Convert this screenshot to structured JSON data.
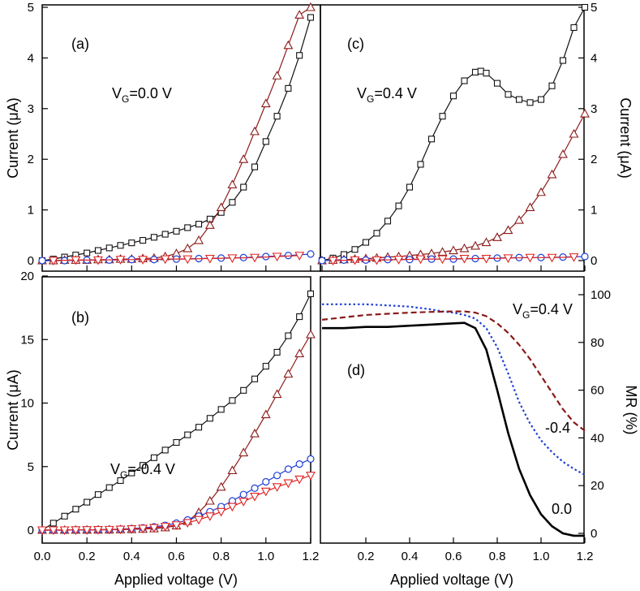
{
  "figure": {
    "x_axis_title": "Applied voltage (V)",
    "current_axis_title": "Current (μA)",
    "mr_axis_title": "MR (%)"
  },
  "chart_data": [
    {
      "panel": "a",
      "type": "line",
      "label": "(a)",
      "annotation": {
        "main": "V",
        "sub": "G",
        "rest": "=0.0 V"
      },
      "ylabel": "Current (μA)",
      "xlim": [
        0,
        1.2
      ],
      "ylim": [
        0,
        5
      ],
      "yticks": [
        0,
        1,
        2,
        3,
        4,
        5
      ],
      "series": [
        {
          "marker": "square",
          "color": "#111111",
          "x": [
            0.0,
            0.05,
            0.1,
            0.15,
            0.2,
            0.25,
            0.3,
            0.35,
            0.4,
            0.45,
            0.5,
            0.55,
            0.6,
            0.65,
            0.7,
            0.75,
            0.8,
            0.85,
            0.9,
            0.95,
            1.0,
            1.05,
            1.1,
            1.15,
            1.2
          ],
          "y": [
            0.0,
            0.03,
            0.07,
            0.11,
            0.15,
            0.2,
            0.25,
            0.3,
            0.35,
            0.4,
            0.46,
            0.52,
            0.58,
            0.65,
            0.72,
            0.82,
            0.95,
            1.15,
            1.45,
            1.85,
            2.35,
            2.85,
            3.4,
            4.05,
            4.8
          ]
        },
        {
          "marker": "triangle-up",
          "color": "#8b1a1a",
          "x": [
            0.0,
            0.05,
            0.1,
            0.15,
            0.2,
            0.25,
            0.3,
            0.35,
            0.4,
            0.45,
            0.5,
            0.55,
            0.6,
            0.65,
            0.7,
            0.75,
            0.8,
            0.85,
            0.9,
            0.95,
            1.0,
            1.05,
            1.1,
            1.15,
            1.2
          ],
          "y": [
            0.0,
            0.0,
            0.01,
            0.01,
            0.01,
            0.02,
            0.02,
            0.03,
            0.03,
            0.04,
            0.05,
            0.08,
            0.14,
            0.24,
            0.4,
            0.7,
            1.05,
            1.5,
            2.0,
            2.55,
            3.1,
            3.65,
            4.25,
            4.85,
            5.0
          ]
        },
        {
          "marker": "circle",
          "color": "#1f3fd6",
          "x": [
            0.0,
            0.1,
            0.2,
            0.3,
            0.4,
            0.5,
            0.6,
            0.7,
            0.8,
            0.9,
            1.0,
            1.1,
            1.2
          ],
          "y": [
            0.0,
            0.0,
            0.01,
            0.01,
            0.02,
            0.02,
            0.03,
            0.04,
            0.05,
            0.06,
            0.08,
            0.1,
            0.13
          ]
        },
        {
          "marker": "triangle-down",
          "color": "#e02020",
          "x": [
            0.05,
            0.15,
            0.25,
            0.35,
            0.45,
            0.55,
            0.65,
            0.75,
            0.85,
            0.95,
            1.05,
            1.15
          ],
          "y": [
            0.0,
            0.01,
            0.01,
            0.02,
            0.02,
            0.03,
            0.03,
            0.04,
            0.05,
            0.06,
            0.08,
            0.1
          ]
        }
      ]
    },
    {
      "panel": "c",
      "type": "line",
      "label": "(c)",
      "annotation": {
        "main": "V",
        "sub": "G",
        "rest": "=0.4 V"
      },
      "ylabel": "Current (μA)",
      "xlim": [
        0,
        1.2
      ],
      "ylim": [
        0,
        5
      ],
      "yticks": [
        0,
        1,
        2,
        3,
        4,
        5
      ],
      "series": [
        {
          "marker": "square",
          "color": "#111111",
          "x": [
            0.0,
            0.05,
            0.1,
            0.15,
            0.2,
            0.25,
            0.3,
            0.35,
            0.4,
            0.45,
            0.5,
            0.55,
            0.6,
            0.65,
            0.7,
            0.725,
            0.75,
            0.8,
            0.85,
            0.9,
            0.95,
            1.0,
            1.05,
            1.1,
            1.15,
            1.2
          ],
          "y": [
            0.0,
            0.05,
            0.12,
            0.22,
            0.36,
            0.54,
            0.78,
            1.08,
            1.45,
            1.9,
            2.4,
            2.85,
            3.25,
            3.55,
            3.72,
            3.74,
            3.7,
            3.5,
            3.28,
            3.18,
            3.12,
            3.18,
            3.45,
            3.95,
            4.6,
            5.0
          ]
        },
        {
          "marker": "triangle-up",
          "color": "#8b1a1a",
          "x": [
            0.0,
            0.05,
            0.1,
            0.15,
            0.2,
            0.25,
            0.3,
            0.35,
            0.4,
            0.45,
            0.5,
            0.55,
            0.6,
            0.65,
            0.7,
            0.75,
            0.8,
            0.85,
            0.9,
            0.95,
            1.0,
            1.05,
            1.1,
            1.15,
            1.2
          ],
          "y": [
            0.0,
            0.01,
            0.02,
            0.03,
            0.04,
            0.05,
            0.07,
            0.08,
            0.1,
            0.12,
            0.14,
            0.17,
            0.2,
            0.24,
            0.29,
            0.36,
            0.46,
            0.6,
            0.8,
            1.05,
            1.35,
            1.7,
            2.1,
            2.5,
            2.9
          ]
        },
        {
          "marker": "circle",
          "color": "#1f3fd6",
          "x": [
            0.0,
            0.1,
            0.2,
            0.3,
            0.4,
            0.5,
            0.6,
            0.7,
            0.8,
            0.9,
            1.0,
            1.1,
            1.2
          ],
          "y": [
            0.0,
            0.01,
            0.01,
            0.02,
            0.02,
            0.03,
            0.03,
            0.04,
            0.05,
            0.06,
            0.06,
            0.07,
            0.08
          ]
        },
        {
          "marker": "triangle-down",
          "color": "#e02020",
          "x": [
            0.05,
            0.15,
            0.25,
            0.35,
            0.45,
            0.55,
            0.65,
            0.75,
            0.85,
            0.95,
            1.05,
            1.15
          ],
          "y": [
            0.0,
            0.01,
            0.01,
            0.02,
            0.03,
            0.03,
            0.04,
            0.04,
            0.05,
            0.06,
            0.06,
            0.07
          ]
        }
      ]
    },
    {
      "panel": "b",
      "type": "line",
      "label": "(b)",
      "annotation": {
        "main": "V",
        "sub": "G",
        "rest": "=-0.4 V"
      },
      "ylabel": "Current (μA)",
      "xlabel": "Applied voltage (V)",
      "xlim": [
        0,
        1.2
      ],
      "ylim": [
        -1,
        20
      ],
      "yticks": [
        0,
        5,
        10,
        15,
        20
      ],
      "xticks": [
        0.0,
        0.2,
        0.4,
        0.6,
        0.8,
        1.0,
        1.2
      ],
      "xtick_labels": [
        "0.0",
        "0.2",
        "0.4",
        "0.6",
        "0.8",
        "1.0",
        "1.2"
      ],
      "series": [
        {
          "marker": "square",
          "color": "#111111",
          "x": [
            0.0,
            0.05,
            0.1,
            0.15,
            0.2,
            0.25,
            0.3,
            0.35,
            0.4,
            0.45,
            0.5,
            0.55,
            0.6,
            0.65,
            0.7,
            0.75,
            0.8,
            0.85,
            0.9,
            0.95,
            1.0,
            1.05,
            1.1,
            1.15,
            1.2
          ],
          "y": [
            0.0,
            0.55,
            1.1,
            1.65,
            2.2,
            2.8,
            3.35,
            3.9,
            4.5,
            5.1,
            5.7,
            6.3,
            6.9,
            7.5,
            8.1,
            8.8,
            9.5,
            10.2,
            11.0,
            11.9,
            12.9,
            14.0,
            15.3,
            16.8,
            18.6
          ]
        },
        {
          "marker": "triangle-up",
          "color": "#8b1a1a",
          "x": [
            0.0,
            0.05,
            0.1,
            0.15,
            0.2,
            0.25,
            0.3,
            0.35,
            0.4,
            0.45,
            0.5,
            0.55,
            0.6,
            0.65,
            0.7,
            0.75,
            0.8,
            0.85,
            0.9,
            0.95,
            1.0,
            1.05,
            1.1,
            1.15,
            1.2
          ],
          "y": [
            0.0,
            0.0,
            0.0,
            0.01,
            0.01,
            0.02,
            0.03,
            0.04,
            0.06,
            0.08,
            0.12,
            0.2,
            0.35,
            0.7,
            1.4,
            2.3,
            3.4,
            4.7,
            6.1,
            7.6,
            9.1,
            10.7,
            12.3,
            13.9,
            15.4
          ]
        },
        {
          "marker": "circle",
          "color": "#1f3fd6",
          "x": [
            0.0,
            0.05,
            0.1,
            0.15,
            0.2,
            0.25,
            0.3,
            0.35,
            0.4,
            0.45,
            0.5,
            0.55,
            0.6,
            0.65,
            0.7,
            0.75,
            0.8,
            0.85,
            0.9,
            0.95,
            1.0,
            1.05,
            1.1,
            1.15,
            1.2
          ],
          "y": [
            0.0,
            0.0,
            0.0,
            0.01,
            0.02,
            0.03,
            0.05,
            0.08,
            0.12,
            0.18,
            0.26,
            0.38,
            0.55,
            0.8,
            1.1,
            1.45,
            1.85,
            2.3,
            2.8,
            3.3,
            3.8,
            4.3,
            4.8,
            5.2,
            5.6
          ]
        },
        {
          "marker": "triangle-down",
          "color": "#e02020",
          "x": [
            0.0,
            0.05,
            0.1,
            0.15,
            0.2,
            0.25,
            0.3,
            0.35,
            0.4,
            0.45,
            0.5,
            0.55,
            0.6,
            0.65,
            0.7,
            0.75,
            0.8,
            0.85,
            0.9,
            0.95,
            1.0,
            1.05,
            1.1,
            1.15,
            1.2
          ],
          "y": [
            0.0,
            0.0,
            0.0,
            0.01,
            0.02,
            0.03,
            0.04,
            0.06,
            0.09,
            0.13,
            0.19,
            0.28,
            0.4,
            0.58,
            0.82,
            1.1,
            1.45,
            1.85,
            2.25,
            2.65,
            3.05,
            3.4,
            3.7,
            4.0,
            4.3
          ]
        }
      ]
    },
    {
      "panel": "d",
      "type": "line",
      "label": "(d)",
      "ylabel": "MR (%)",
      "xlabel": "Applied voltage (V)",
      "xlim": [
        0,
        1.2
      ],
      "ylim": [
        -3,
        100
      ],
      "yticks": [
        0,
        20,
        40,
        60,
        80,
        100
      ],
      "xticks": [
        0.2,
        0.4,
        0.6,
        0.8,
        1.0,
        1.2
      ],
      "xtick_labels": [
        "0.2",
        "0.4",
        "0.6",
        "0.8",
        "1.0",
        "1.2"
      ],
      "annotations": [
        {
          "text_main": "V",
          "text_sub": "G",
          "text_rest": "=0.4 V"
        },
        {
          "text": "-0.4"
        },
        {
          "text": "0.0"
        }
      ],
      "series": [
        {
          "style": "solid",
          "color": "#000000",
          "stroke": 2.6,
          "x": [
            0.0,
            0.1,
            0.2,
            0.3,
            0.4,
            0.5,
            0.6,
            0.65,
            0.7,
            0.75,
            0.8,
            0.85,
            0.9,
            0.95,
            1.0,
            1.05,
            1.1,
            1.15,
            1.2
          ],
          "y": [
            86.0,
            86.0,
            86.5,
            86.5,
            87.0,
            87.5,
            88.0,
            88.2,
            86.0,
            77.0,
            60.0,
            42.0,
            27.0,
            16.0,
            8.0,
            3.0,
            0.0,
            -1.0,
            -1.0
          ]
        },
        {
          "style": "dotted",
          "color": "#1f3fd6",
          "stroke": 2.2,
          "x": [
            0.0,
            0.1,
            0.2,
            0.3,
            0.4,
            0.5,
            0.55,
            0.6,
            0.65,
            0.7,
            0.75,
            0.8,
            0.85,
            0.9,
            0.95,
            1.0,
            1.05,
            1.1,
            1.15,
            1.2
          ],
          "y": [
            96.0,
            96.0,
            96.0,
            95.5,
            95.0,
            93.8,
            93.0,
            92.5,
            91.5,
            90.0,
            86.0,
            78.0,
            67.0,
            55.0,
            46.0,
            39.0,
            34.0,
            30.0,
            27.0,
            24.5
          ]
        },
        {
          "style": "dashed",
          "color": "#8b1a1a",
          "stroke": 2.2,
          "x": [
            0.0,
            0.1,
            0.2,
            0.3,
            0.4,
            0.5,
            0.6,
            0.65,
            0.7,
            0.75,
            0.8,
            0.85,
            0.9,
            0.95,
            1.0,
            1.05,
            1.1,
            1.15,
            1.2
          ],
          "y": [
            89.5,
            90.5,
            91.5,
            92.0,
            92.5,
            92.8,
            93.0,
            93.0,
            92.5,
            91.0,
            88.0,
            84.0,
            79.0,
            73.0,
            66.0,
            59.0,
            52.0,
            46.5,
            43.0
          ]
        }
      ]
    }
  ]
}
